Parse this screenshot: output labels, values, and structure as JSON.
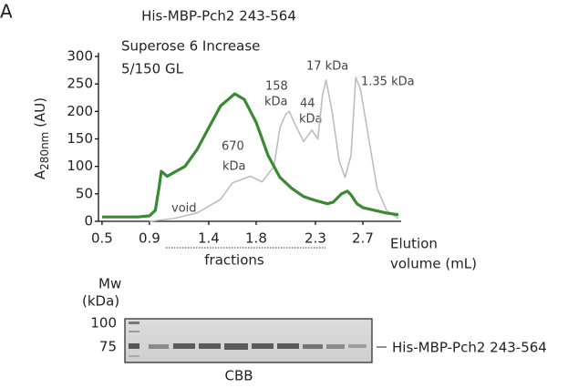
{
  "panel": "A",
  "chart_data": {
    "type": "line",
    "title": "His-MBP-Pch2 243-564",
    "ylabel": {
      "main": "A",
      "sub": "280nm",
      "unit": "(AU)"
    },
    "xlabel": [
      "Elution",
      "volume (mL)"
    ],
    "fractions_label": "fractions",
    "annotations": [
      "Superose 6 Increase",
      "5/150 GL",
      "158",
      "kDa",
      "44",
      "kDa",
      "17 kDa",
      "1.35 kDa",
      "670",
      "kDa",
      "void"
    ],
    "xlim": [
      0.47,
      3.0
    ],
    "ylim": [
      0,
      300
    ],
    "xticks": [
      0.5,
      0.9,
      1.4,
      1.8,
      2.3,
      2.7
    ],
    "yticks": [
      0,
      50,
      100,
      150,
      200,
      250,
      300
    ],
    "series": [
      {
        "color": "#bdbdbd",
        "x": [
          0.9,
          1.1,
          1.3,
          1.5,
          1.6,
          1.75,
          1.85,
          1.95,
          2.0,
          2.05,
          2.08,
          2.12,
          2.2,
          2.27,
          2.32,
          2.36,
          2.39,
          2.44,
          2.5,
          2.55,
          2.6,
          2.64,
          2.68,
          2.75,
          2.82,
          2.9,
          3.0
        ],
        "values": [
          0,
          5,
          15,
          40,
          70,
          82,
          72,
          100,
          170,
          195,
          200,
          180,
          145,
          166,
          150,
          230,
          257,
          200,
          110,
          80,
          120,
          262,
          240,
          150,
          60,
          20,
          5
        ]
      },
      {
        "color": "#3a8a34",
        "x": [
          0.5,
          0.8,
          0.9,
          0.95,
          0.98,
          1.0,
          1.05,
          1.1,
          1.2,
          1.3,
          1.4,
          1.5,
          1.62,
          1.7,
          1.8,
          1.9,
          2.0,
          2.1,
          2.2,
          2.3,
          2.4,
          2.45,
          2.52,
          2.57,
          2.6,
          2.65,
          2.7,
          2.8,
          2.9,
          3.0
        ],
        "values": [
          8,
          8,
          10,
          20,
          60,
          91,
          82,
          88,
          100,
          130,
          170,
          210,
          232,
          222,
          180,
          120,
          80,
          60,
          45,
          38,
          32,
          35,
          50,
          55,
          48,
          32,
          25,
          20,
          15,
          12
        ]
      }
    ]
  },
  "gel": {
    "mw_title": "Mw",
    "mw_unit": "(kDa)",
    "markers": [
      "100",
      "75"
    ],
    "band_label": "His-MBP-Pch2 243-564",
    "stain": "CBB"
  }
}
